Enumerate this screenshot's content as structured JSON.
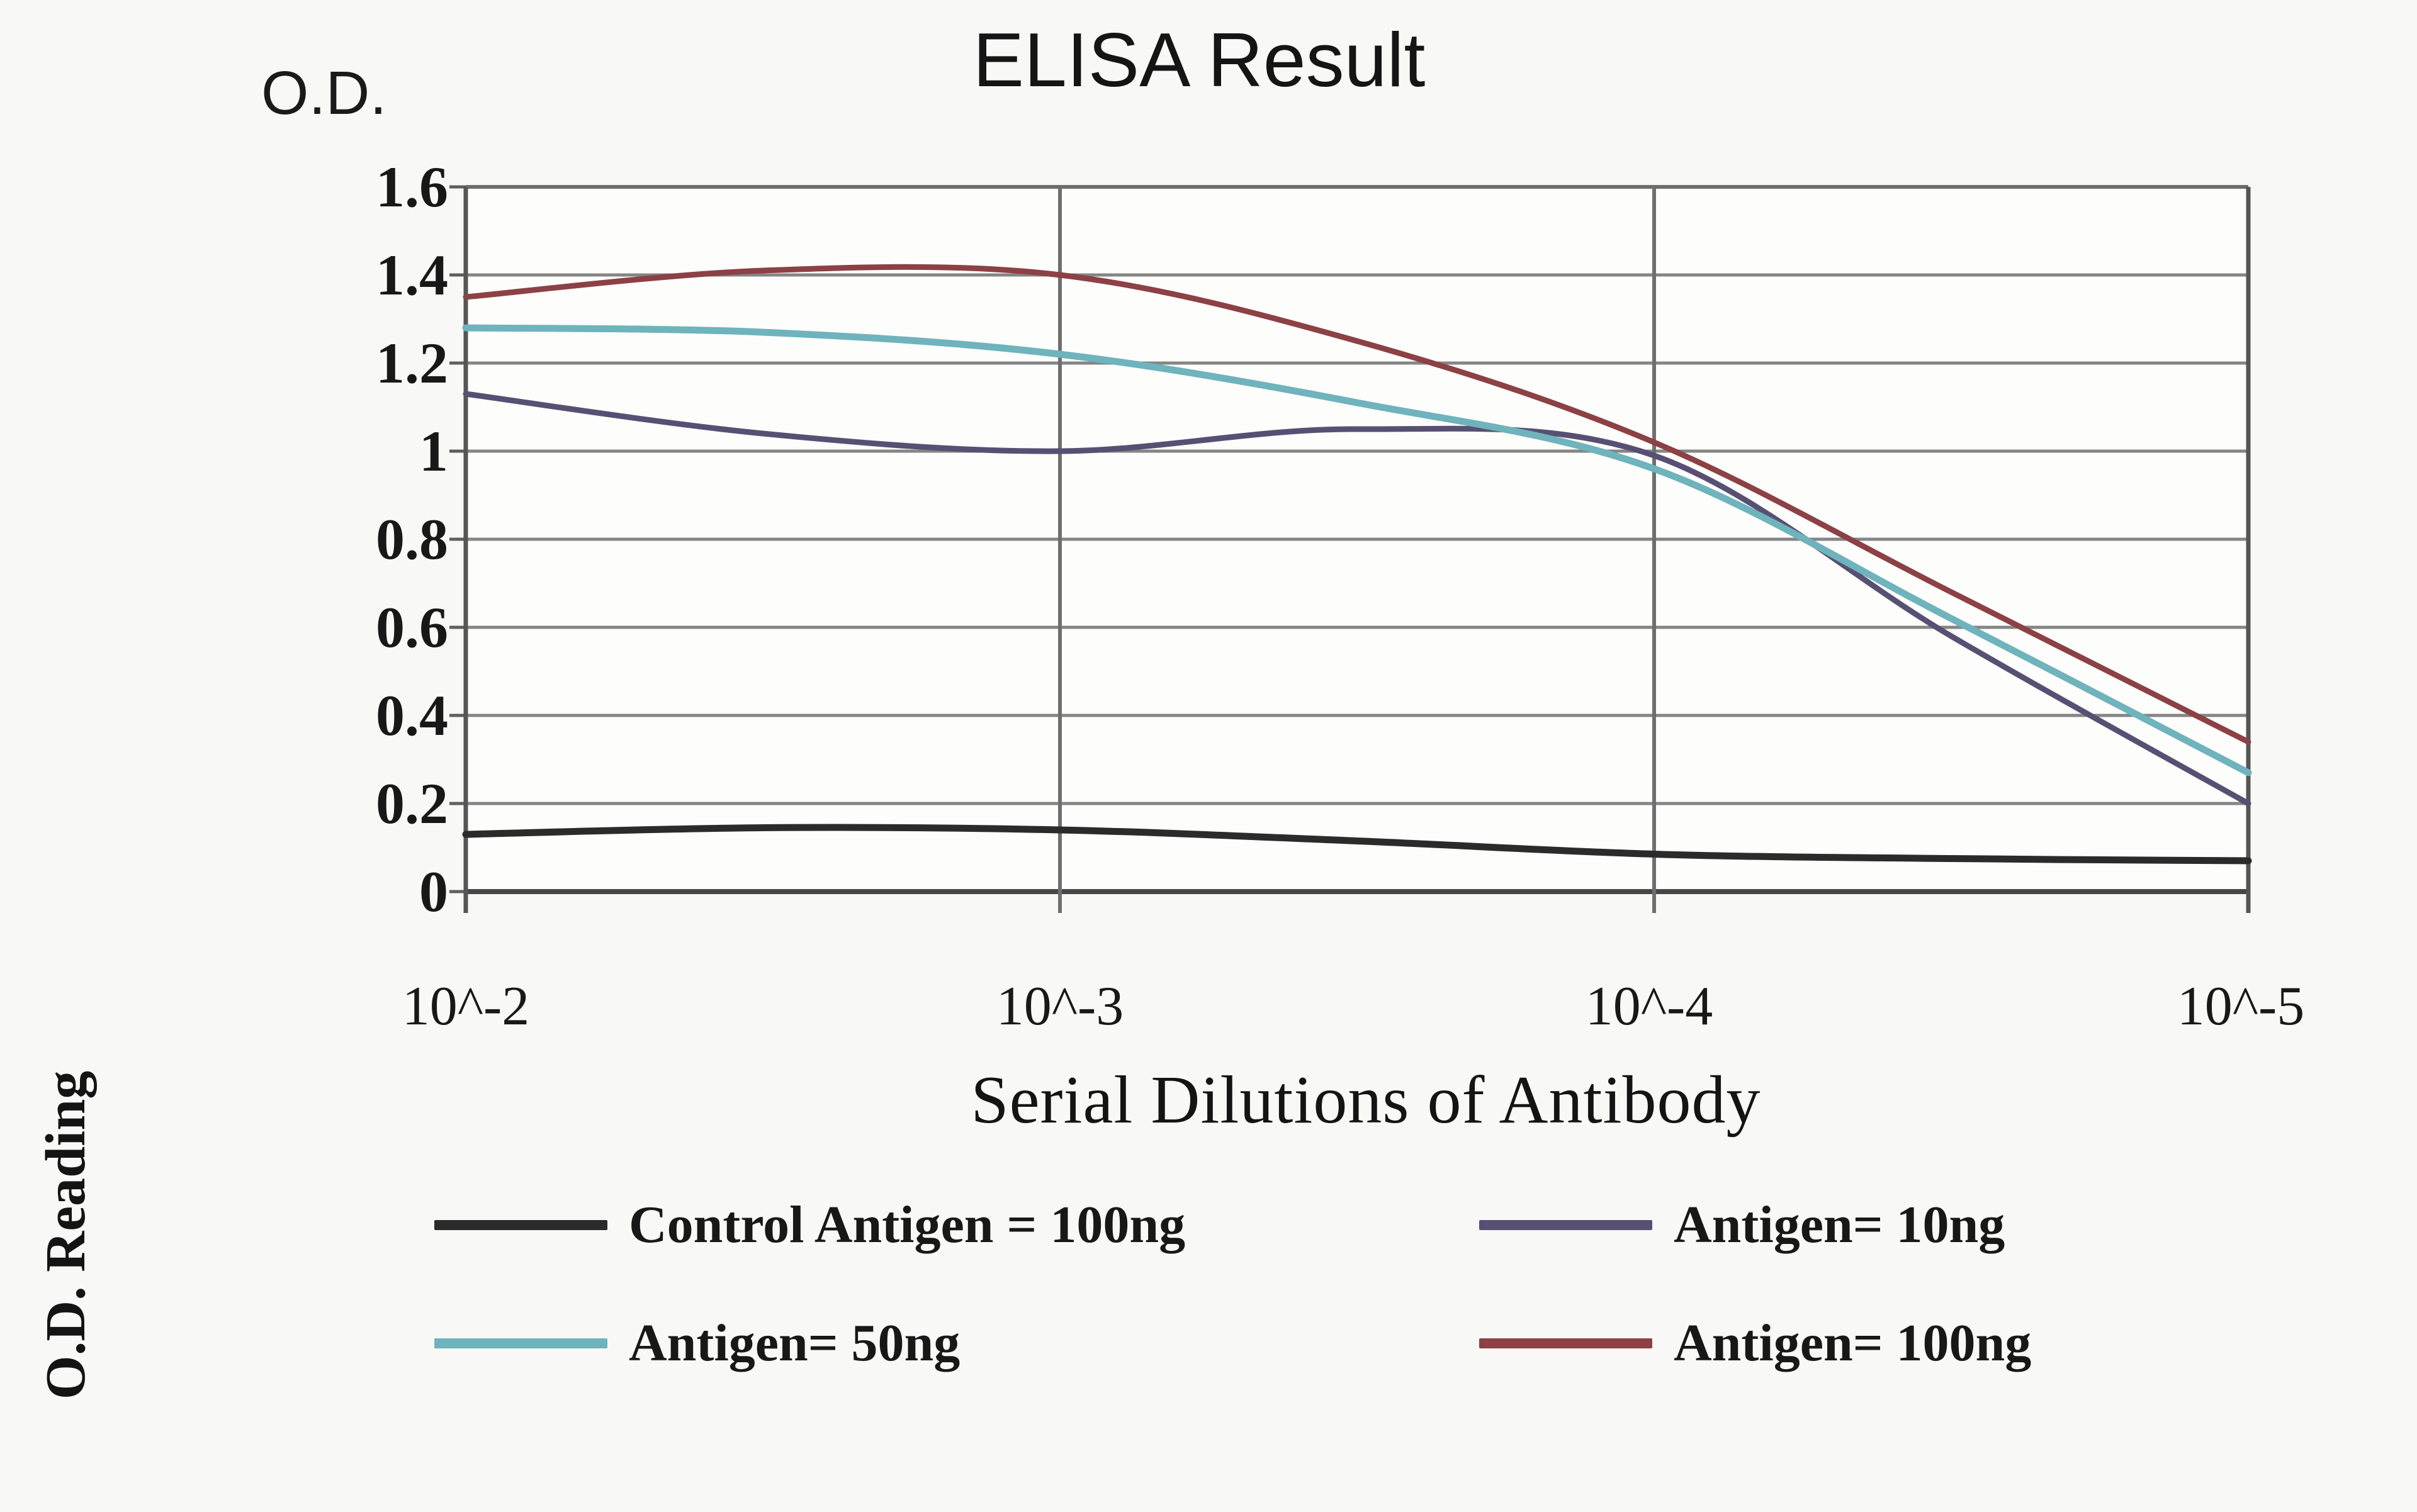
{
  "title": "ELISA Result",
  "y_axis": {
    "corner_label": "O.D.",
    "side_label": "O.D. Reading",
    "tick_labels": [
      "1.6",
      "1.4",
      "1.2",
      "1",
      "0.8",
      "0.6",
      "0.4",
      "0.2",
      "0"
    ]
  },
  "x_axis": {
    "title": "Serial Dilutions of Antibody",
    "tick_labels": [
      "10^-2",
      "10^-3",
      "10^-4",
      "10^-5"
    ]
  },
  "chart_data": {
    "type": "line",
    "title": "ELISA Result",
    "xlabel": "Serial Dilutions of Antibody",
    "ylabel": "O.D. Reading",
    "x": [
      -2,
      -2.5,
      -3,
      -3.5,
      -4,
      -4.5,
      -5
    ],
    "x_major_ticks": [
      -2,
      -3,
      -4,
      -5
    ],
    "x_tick_labels": [
      "10^-2",
      "10^-3",
      "10^-4",
      "10^-5"
    ],
    "ylim": [
      0,
      1.6
    ],
    "y_tick_step": 0.2,
    "grid": true,
    "legend_position": "bottom",
    "series": [
      {
        "name": "Control Antigen = 100ng",
        "color": "#2b2b2b",
        "values": [
          0.13,
          0.145,
          0.14,
          0.115,
          0.085,
          0.075,
          0.07
        ]
      },
      {
        "name": "Antigen= 10ng",
        "color": "#585073",
        "values": [
          1.13,
          1.04,
          1.0,
          1.05,
          0.99,
          0.58,
          0.2
        ]
      },
      {
        "name": "Antigen= 50ng",
        "color": "#6fb3bc",
        "values": [
          1.28,
          1.27,
          1.22,
          1.11,
          0.96,
          0.62,
          0.27
        ]
      },
      {
        "name": "Antigen= 100ng",
        "color": "#8c4145",
        "values": [
          1.35,
          1.41,
          1.4,
          1.25,
          1.02,
          0.68,
          0.34
        ]
      }
    ]
  }
}
